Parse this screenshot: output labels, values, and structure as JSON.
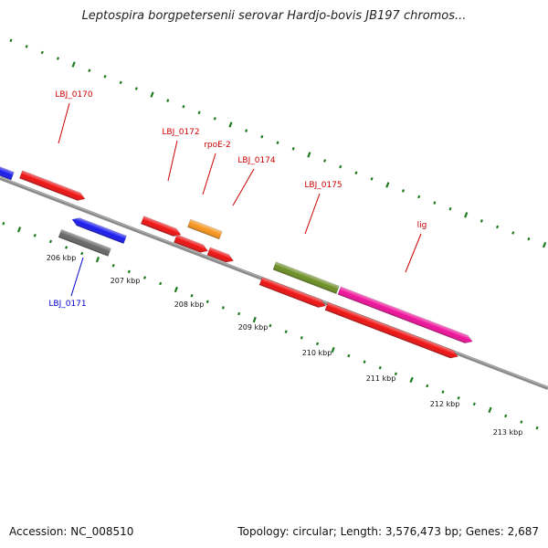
{
  "title": "Leptospira borgpetersenii serovar Hardjo-bovis JB197 chromos...",
  "footer": {
    "accession": "Accession: NC_008510",
    "summary": "Topology: circular; Length: 3,576,473 bp; Genes: 2,687"
  },
  "colors": {
    "backbone": "#8a8a8a",
    "tick_dots": "#1e7a1e",
    "label_forward": "#cc0000",
    "label_reverse": "#0000cc"
  },
  "ticks": [
    {
      "label": "206 kbp"
    },
    {
      "label": "207 kbp"
    },
    {
      "label": "208 kbp"
    },
    {
      "label": "209 kbp"
    },
    {
      "label": "210 kbp"
    },
    {
      "label": "211 kbp"
    },
    {
      "label": "212 kbp"
    },
    {
      "label": "213 kbp"
    }
  ],
  "gene_labels": [
    {
      "text": "LBJ_0170",
      "strand": "forward"
    },
    {
      "text": "LBJ_0172",
      "strand": "forward"
    },
    {
      "text": "rpoE-2",
      "strand": "forward"
    },
    {
      "text": "LBJ_0174",
      "strand": "forward"
    },
    {
      "text": "LBJ_0175",
      "strand": "forward"
    },
    {
      "text": "lig",
      "strand": "forward"
    },
    {
      "text": "LBJ_0171",
      "strand": "reverse"
    }
  ],
  "features": [
    {
      "name": "LBJ_0170-gene",
      "color": "#ee1111",
      "direction": "forward"
    },
    {
      "name": "LBJ_0171-gene",
      "color": "#1a1aee",
      "direction": "reverse"
    },
    {
      "name": "LBJ_0171-cds",
      "color": "#666666",
      "direction": "none"
    },
    {
      "name": "LBJ_0172-gene",
      "color": "#ee1111",
      "direction": "forward"
    },
    {
      "name": "rpoE-2-gene",
      "color": "#f7941d",
      "direction": "none"
    },
    {
      "name": "rpoE-2-cds",
      "color": "#ee1111",
      "direction": "forward"
    },
    {
      "name": "LBJ_0174-gene",
      "color": "#ee1111",
      "direction": "forward"
    },
    {
      "name": "LBJ_0175-gene",
      "color": "#6b8e23",
      "direction": "none"
    },
    {
      "name": "LBJ_0175-cds",
      "color": "#ee1111",
      "direction": "forward"
    },
    {
      "name": "lig-gene",
      "color": "#ee1199",
      "direction": "forward"
    },
    {
      "name": "lig-cds",
      "color": "#ee1111",
      "direction": "forward"
    },
    {
      "name": "left-edge-gene",
      "color": "#1a1aee",
      "direction": "reverse"
    }
  ]
}
